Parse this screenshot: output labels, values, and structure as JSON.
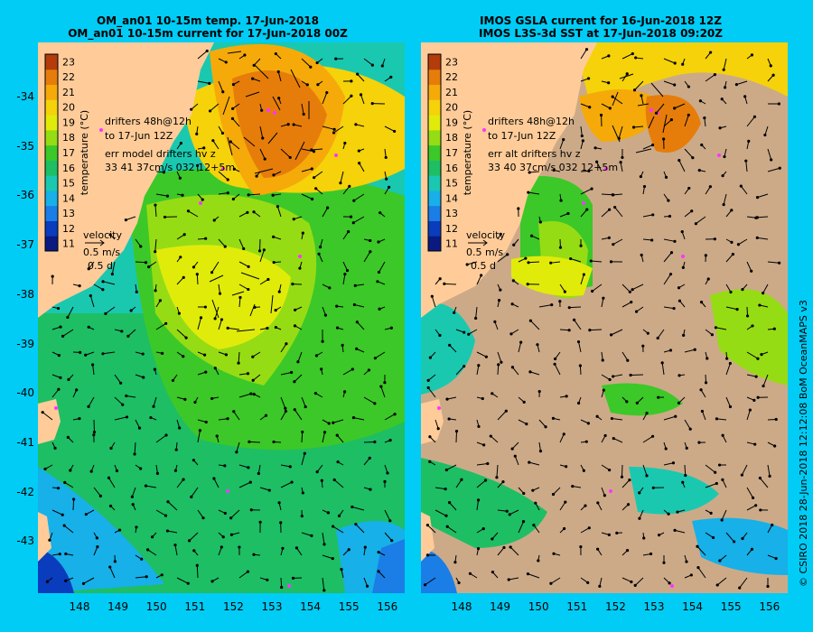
{
  "left_panel": {
    "title_line1": "OM_an01 10-15m temp. 17-Jun-2018",
    "title_line2": "OM_an01 10-15m current for 17-Jun-2018 00Z",
    "drifter_note_1": "drifters 48h@12h",
    "drifter_note_2": "to 17-Jun 12Z",
    "err_line_1": "err model drifters hv z",
    "err_line_2": "33 41 37cm/s 032 12+5m"
  },
  "right_panel": {
    "title_line1": "IMOS GSLA current for 16-Jun-2018 12Z",
    "title_line2": "IMOS L3S-3d SST at 17-Jun-2018 09:20Z",
    "drifter_note_1": "drifters 48h@12h",
    "drifter_note_2": "to 17-Jun 12Z",
    "err_line_1": "err alt drifters hv z",
    "err_line_2": "33 40 37cm/s 032 12+5m"
  },
  "legend": {
    "colorbar_label": "temperature (°C)",
    "colorbar_ticks": [
      "23",
      "22",
      "21",
      "20",
      "19",
      "18",
      "17",
      "16",
      "15",
      "14",
      "13",
      "12",
      "11"
    ],
    "velocity_label": "velocity",
    "velocity_scale": "0.5 m/s",
    "velocity_time": "0.5 d"
  },
  "axes": {
    "lat_labels": [
      "-34",
      "-35",
      "-36",
      "-37",
      "-38",
      "-39",
      "-40",
      "-41",
      "-42",
      "-43"
    ],
    "lon_labels": [
      "148",
      "149",
      "150",
      "151",
      "152",
      "153",
      "154",
      "155",
      "156"
    ]
  },
  "credit": "© CSIRO 2018   28-Jun-2018 12:12:08 BoM OceanMAPS v3",
  "colors": {
    "background": "#00ccf5",
    "land": "#ffcc99",
    "cloud": "#ccaa88",
    "drifter": "#ff33ff",
    "temp_scale": [
      "#0a1a80",
      "#0a3cbe",
      "#1a7ee6",
      "#17b0e8",
      "#1ac8b0",
      "#1ebe64",
      "#3cc828",
      "#96dc14",
      "#e1eb0a",
      "#f5d20a",
      "#f5aa0a",
      "#e67d0a",
      "#b43c0a"
    ]
  }
}
